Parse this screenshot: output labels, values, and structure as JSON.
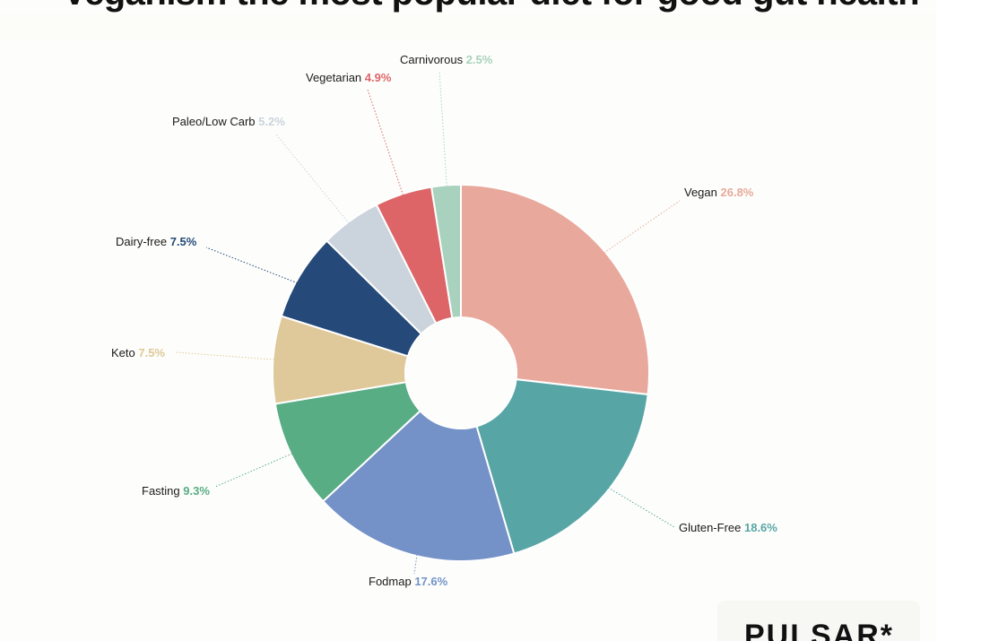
{
  "title": "Veganism the most popular diet for good gut health",
  "brand": "PULSAR*",
  "chart_data": {
    "type": "pie",
    "donut": true,
    "unit": "%",
    "slices": [
      {
        "label": "Vegan",
        "value": 26.8,
        "display": "26.8%",
        "color": "#e8a99c"
      },
      {
        "label": "Gluten-Free",
        "value": 18.6,
        "display": "18.6%",
        "color": "#58a5a6"
      },
      {
        "label": "Fodmap",
        "value": 17.6,
        "display": "17.6%",
        "color": "#7492c8"
      },
      {
        "label": "Fasting",
        "value": 9.3,
        "display": "9.3%",
        "color": "#58ad84"
      },
      {
        "label": "Keto",
        "value": 7.5,
        "display": "7.5%",
        "color": "#dfc899"
      },
      {
        "label": "Dairy-free",
        "value": 7.5,
        "display": "7.5%",
        "color": "#254a79"
      },
      {
        "label": "Paleo/Low Carb",
        "value": 5.2,
        "display": "5.2%",
        "color": "#cbd3dc"
      },
      {
        "label": "Vegetarian",
        "value": 4.9,
        "display": "4.9%",
        "color": "#dd6568"
      },
      {
        "label": "Carnivorous",
        "value": 2.5,
        "display": "2.5%",
        "color": "#a8d2bd"
      }
    ]
  }
}
